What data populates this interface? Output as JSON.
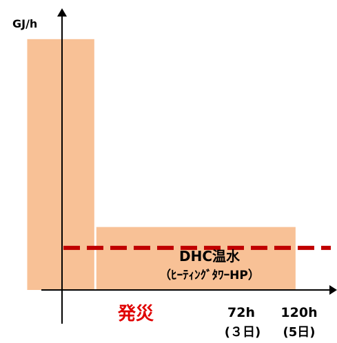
{
  "chart_data": {
    "type": "bar",
    "title": "",
    "ylabel": "GJ/h",
    "xlabel": "",
    "grid": false,
    "legend": "none",
    "x_ticks": [
      {
        "label": "72h",
        "sublabel": "(３日)"
      },
      {
        "label": "120h",
        "sublabel": "(5日)"
      }
    ],
    "event_marker": {
      "label": "発災",
      "color": "#e00000"
    },
    "bars": [
      {
        "name": "pre-disaster",
        "x_start_h": -40,
        "x_end_h": 0,
        "value": 100,
        "color": "#f8c196"
      },
      {
        "name": "post-disaster",
        "x_start_h": 0,
        "x_end_h": 120,
        "value": 28,
        "color": "#f8c196"
      }
    ],
    "reference_line": {
      "value": 20,
      "color": "#c00000",
      "style": "dashed"
    },
    "annotation": {
      "line1": "DHC温水",
      "line2": "（ﾋｰﾃｨﾝｸﾞﾀﾜｰHP）"
    },
    "xlim": [
      -48,
      148
    ],
    "ylim": [
      -8,
      115
    ]
  }
}
